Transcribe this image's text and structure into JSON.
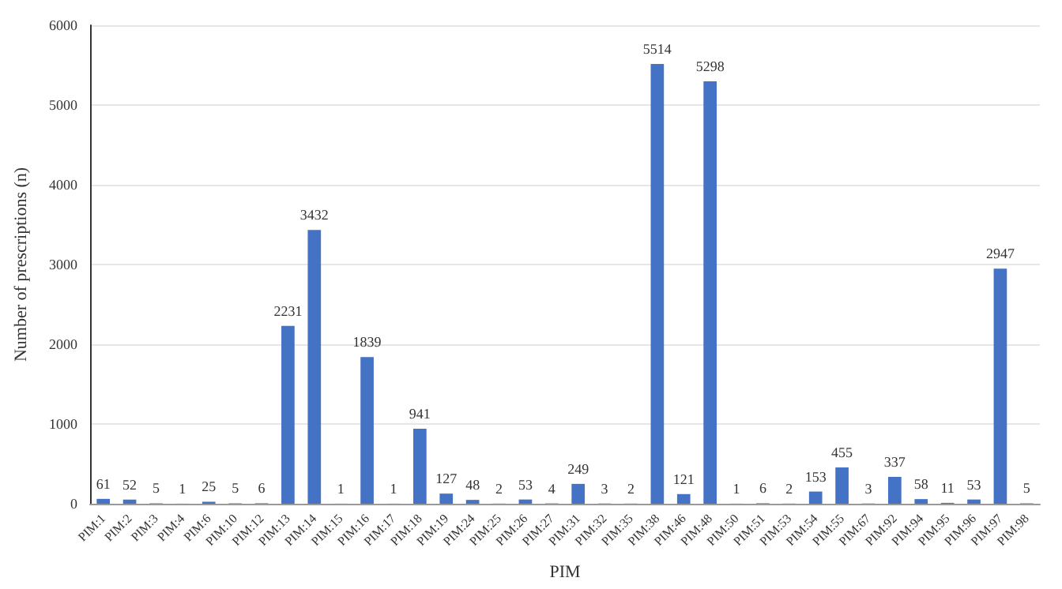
{
  "chart_data": {
    "type": "bar",
    "xlabel": "PIM",
    "ylabel": "Number of prescriptions (n)",
    "categories": [
      "PIM:1",
      "PIM:2",
      "PIM:3",
      "PIM:4",
      "PIM:6",
      "PIM:10",
      "PIM:12",
      "PIM:13",
      "PIM:14",
      "PIM:15",
      "PIM:16",
      "PIM:17",
      "PIM:18",
      "PIM:19",
      "PIM:24",
      "PIM:25",
      "PIM:26",
      "PIM:27",
      "PIM:31",
      "PIM:32",
      "PIM:35",
      "PIM:38",
      "PIM:46",
      "PIM:48",
      "PIM:50",
      "PIM:51",
      "PIM:53",
      "PIM:54",
      "PIM:55",
      "PIM:67",
      "PIM:92",
      "PIM:94",
      "PIM:95",
      "PIM:96",
      "PIM:97",
      "PIM:98"
    ],
    "values": [
      61,
      52,
      5,
      1,
      25,
      5,
      6,
      2231,
      3432,
      1,
      1839,
      1,
      941,
      127,
      48,
      2,
      53,
      4,
      249,
      3,
      2,
      5514,
      121,
      5298,
      1,
      6,
      2,
      153,
      455,
      3,
      337,
      58,
      11,
      53,
      2947,
      5
    ],
    "color": "#4472c4",
    "ylim": [
      0,
      6000
    ],
    "yticks": [
      0,
      1000,
      2000,
      3000,
      4000,
      5000,
      6000
    ],
    "grid": "y",
    "data_labels": true
  }
}
